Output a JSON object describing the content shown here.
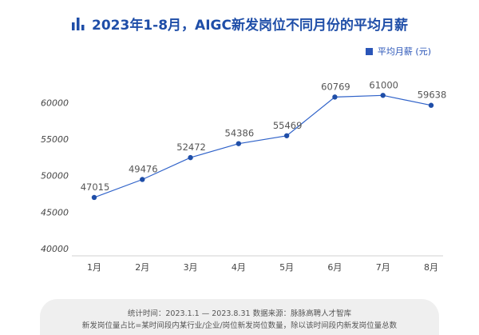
{
  "title": "2023年1-8月，AIGC新发岗位不同月份的平均月薪",
  "colors": {
    "title": "#1f4ea8",
    "line": "#2f62c9",
    "point": "#1f4ea8",
    "legend": "#2a55b8"
  },
  "icons": {
    "title_icon": "bar-chart-icon"
  },
  "footer": {
    "line1": "统计时间：2023.1.1 — 2023.8.31  数据来源：脉脉高聘人才智库",
    "line2": "新发岗位量占比=某时间段内某行业/企业/岗位新发岗位数量，除以该时间段内新发岗位量总数"
  },
  "chart_data": {
    "type": "line",
    "title": "2023年1-8月，AIGC新发岗位不同月份的平均月薪",
    "xlabel": "",
    "ylabel": "",
    "categories": [
      "1月",
      "2月",
      "3月",
      "4月",
      "5月",
      "6月",
      "7月",
      "8月"
    ],
    "series": [
      {
        "name": "平均月薪 (元)",
        "values": [
          47015,
          49476,
          52472,
          54386,
          55469,
          60769,
          61000,
          59638
        ]
      }
    ],
    "yticks": [
      40000,
      45000,
      50000,
      55000,
      60000
    ],
    "ylim": [
      40000,
      62000
    ],
    "grid": false,
    "legend": "top-right",
    "data_labels": true
  }
}
